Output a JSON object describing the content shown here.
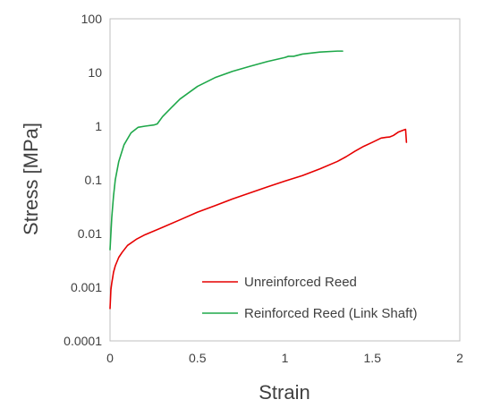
{
  "chart_data": {
    "type": "line",
    "xlabel": "Strain",
    "ylabel": "Stress [MPa]",
    "xlim": [
      0,
      2
    ],
    "ylim": [
      0.0001,
      100
    ],
    "yscale": "log",
    "x_ticks": [
      "0",
      "0.5",
      "1",
      "1.5",
      "2"
    ],
    "y_ticks": [
      "0.0001",
      "0.001",
      "0.01",
      "0.1",
      "1",
      "10",
      "100"
    ],
    "grid": false,
    "legend_position": "lower-middle",
    "series": [
      {
        "name": "Unreinforced Reed",
        "color": "#e60000",
        "points": [
          [
            0.0,
            0.0004
          ],
          [
            0.005,
            0.0009
          ],
          [
            0.01,
            0.0012
          ],
          [
            0.015,
            0.0015
          ],
          [
            0.02,
            0.0019
          ],
          [
            0.03,
            0.0025
          ],
          [
            0.04,
            0.003
          ],
          [
            0.05,
            0.0036
          ],
          [
            0.07,
            0.0045
          ],
          [
            0.1,
            0.006
          ],
          [
            0.15,
            0.0078
          ],
          [
            0.2,
            0.0095
          ],
          [
            0.3,
            0.013
          ],
          [
            0.4,
            0.018
          ],
          [
            0.5,
            0.025
          ],
          [
            0.6,
            0.033
          ],
          [
            0.7,
            0.044
          ],
          [
            0.8,
            0.057
          ],
          [
            0.9,
            0.074
          ],
          [
            1.0,
            0.095
          ],
          [
            1.1,
            0.12
          ],
          [
            1.2,
            0.16
          ],
          [
            1.3,
            0.22
          ],
          [
            1.35,
            0.27
          ],
          [
            1.4,
            0.34
          ],
          [
            1.45,
            0.42
          ],
          [
            1.5,
            0.5
          ],
          [
            1.55,
            0.6
          ],
          [
            1.58,
            0.62
          ],
          [
            1.6,
            0.63
          ],
          [
            1.62,
            0.67
          ],
          [
            1.65,
            0.78
          ],
          [
            1.68,
            0.85
          ],
          [
            1.69,
            0.87
          ],
          [
            1.695,
            0.5
          ]
        ]
      },
      {
        "name": "Reinforced Reed (Link Shaft)",
        "color": "#1fa84a",
        "points": [
          [
            0.0,
            0.005
          ],
          [
            0.01,
            0.02
          ],
          [
            0.02,
            0.05
          ],
          [
            0.03,
            0.1
          ],
          [
            0.05,
            0.22
          ],
          [
            0.08,
            0.45
          ],
          [
            0.12,
            0.75
          ],
          [
            0.16,
            0.95
          ],
          [
            0.2,
            1.0
          ],
          [
            0.25,
            1.05
          ],
          [
            0.27,
            1.1
          ],
          [
            0.3,
            1.5
          ],
          [
            0.35,
            2.2
          ],
          [
            0.4,
            3.2
          ],
          [
            0.5,
            5.5
          ],
          [
            0.6,
            8.0
          ],
          [
            0.7,
            10.5
          ],
          [
            0.8,
            13.0
          ],
          [
            0.9,
            16.0
          ],
          [
            1.0,
            19.0
          ],
          [
            1.02,
            20.0
          ],
          [
            1.05,
            20.0
          ],
          [
            1.1,
            22.0
          ],
          [
            1.2,
            24.0
          ],
          [
            1.3,
            25.0
          ],
          [
            1.33,
            25.0
          ]
        ]
      }
    ]
  }
}
